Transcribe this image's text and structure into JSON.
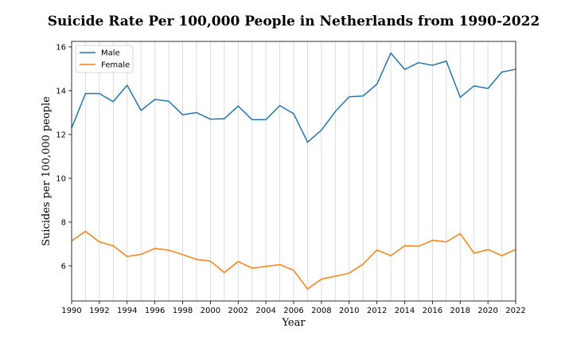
{
  "chart_data": {
    "type": "line",
    "title": "Suicide Rate Per 100,000 People in Netherlands from 1990-2022",
    "xlabel": "Year",
    "ylabel": "Suicides per 100,000 people",
    "xlim": [
      1990,
      2022
    ],
    "ylim": [
      4.4,
      16.25
    ],
    "grid": "vertical",
    "legend_position": "top-left",
    "x_ticks": [
      1990,
      1992,
      1994,
      1996,
      1998,
      2000,
      2002,
      2004,
      2006,
      2008,
      2010,
      2012,
      2014,
      2016,
      2018,
      2020,
      2022
    ],
    "y_ticks": [
      6,
      8,
      10,
      12,
      14,
      16
    ],
    "x": [
      1990,
      1991,
      1992,
      1993,
      1994,
      1995,
      1996,
      1997,
      1998,
      1999,
      2000,
      2001,
      2002,
      2003,
      2004,
      2005,
      2006,
      2007,
      2008,
      2009,
      2010,
      2011,
      2012,
      2013,
      2014,
      2015,
      2016,
      2017,
      2018,
      2019,
      2020,
      2021,
      2022
    ],
    "series": [
      {
        "name": "Male",
        "color": "#1f77b4",
        "values": [
          12.3,
          13.87,
          13.87,
          13.5,
          14.25,
          13.1,
          13.6,
          13.52,
          12.9,
          13.0,
          12.7,
          12.72,
          13.3,
          12.68,
          12.68,
          13.32,
          12.95,
          11.65,
          12.2,
          13.05,
          13.72,
          13.76,
          14.3,
          15.72,
          14.97,
          15.28,
          15.16,
          15.35,
          13.7,
          14.22,
          14.1,
          14.85,
          14.98
        ]
      },
      {
        "name": "Female",
        "color": "#ff7f0e",
        "values": [
          7.15,
          7.58,
          7.1,
          6.92,
          6.43,
          6.53,
          6.8,
          6.72,
          6.52,
          6.3,
          6.22,
          5.7,
          6.2,
          5.9,
          5.98,
          6.06,
          5.8,
          4.95,
          5.4,
          5.53,
          5.67,
          6.08,
          6.73,
          6.47,
          6.92,
          6.9,
          7.17,
          7.1,
          7.48,
          6.58,
          6.75,
          6.47,
          6.75
        ]
      }
    ]
  }
}
